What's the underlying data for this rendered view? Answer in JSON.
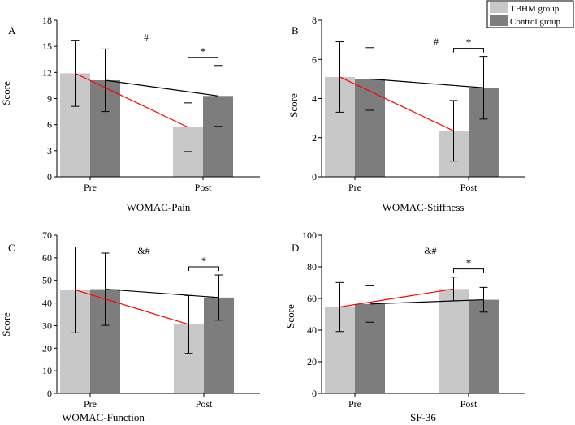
{
  "legend": {
    "placement": "top-right",
    "entries": [
      {
        "label": "TBHM group",
        "color": "#c8c8c8"
      },
      {
        "label": "Control group",
        "color": "#7d7d7d"
      }
    ]
  },
  "colors": {
    "tbhm_bar": "#c8c8c8",
    "control_bar": "#7d7d7d",
    "tbhm_trend": "#ff0000",
    "control_trend": "#000000"
  },
  "chart_data": [
    {
      "type": "bar",
      "panel_letter": "A",
      "title": "WOMAC-Pain",
      "xlabel": "WOMAC-Pain",
      "ylabel": "Score",
      "categories": [
        "Pre",
        "Post"
      ],
      "ylim": [
        0,
        18
      ],
      "yticks": [
        "0",
        "3",
        "6",
        "9",
        "12",
        "15",
        "18"
      ],
      "series": [
        {
          "name": "TBHM group",
          "values": [
            11.9,
            5.7
          ],
          "errors": [
            3.8,
            2.8
          ]
        },
        {
          "name": "Control group",
          "values": [
            11.1,
            9.3
          ],
          "errors": [
            3.6,
            3.5
          ]
        }
      ],
      "group_annotation": "#",
      "post_annotation": "*"
    },
    {
      "type": "bar",
      "panel_letter": "B",
      "title": "WOMAC-Stiffness",
      "xlabel": "WOMAC-Stiffness",
      "ylabel": "Score",
      "categories": [
        "Pre",
        "Post"
      ],
      "ylim": [
        0,
        8
      ],
      "yticks": [
        "0",
        "2",
        "4",
        "6",
        "8"
      ],
      "series": [
        {
          "name": "TBHM group",
          "values": [
            5.1,
            2.35
          ],
          "errors": [
            1.8,
            1.55
          ]
        },
        {
          "name": "Control group",
          "values": [
            5.0,
            4.55
          ],
          "errors": [
            1.6,
            1.6
          ]
        }
      ],
      "group_annotation": "#",
      "post_annotation": "*"
    },
    {
      "type": "bar",
      "panel_letter": "C",
      "title": "WOMAC-Function",
      "xlabel": "WOMAC-Function",
      "ylabel": "Score",
      "categories": [
        "Pre",
        "Post"
      ],
      "ylim": [
        0,
        70
      ],
      "yticks": [
        "0",
        "10",
        "20",
        "30",
        "40",
        "50",
        "60",
        "70"
      ],
      "series": [
        {
          "name": "TBHM group",
          "values": [
            45.8,
            30.5
          ],
          "errors": [
            19.0,
            12.8
          ]
        },
        {
          "name": "Control group",
          "values": [
            46.1,
            42.4
          ],
          "errors": [
            16.0,
            10.0
          ]
        }
      ],
      "group_annotation": "&#",
      "post_annotation": "*"
    },
    {
      "type": "bar",
      "panel_letter": "D",
      "title": "SF-36",
      "xlabel": "SF-36",
      "ylabel": "Score",
      "categories": [
        "Pre",
        "Post"
      ],
      "ylim": [
        0,
        100
      ],
      "yticks": [
        "0",
        "20",
        "40",
        "60",
        "80",
        "100"
      ],
      "series": [
        {
          "name": "TBHM group",
          "values": [
            54.6,
            66.0
          ],
          "errors": [
            15.5,
            7.5
          ]
        },
        {
          "name": "Control group",
          "values": [
            56.5,
            59.2
          ],
          "errors": [
            11.5,
            7.8
          ]
        }
      ],
      "group_annotation": "&#",
      "post_annotation": "*"
    }
  ]
}
